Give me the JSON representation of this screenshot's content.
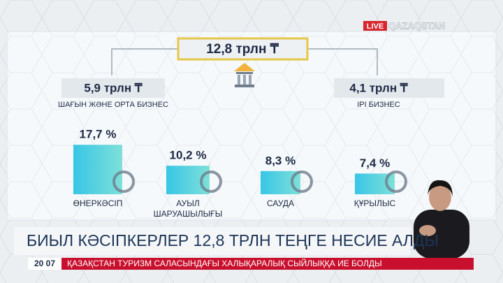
{
  "channel": {
    "live": "LIVE",
    "name": "QAZAQSTAN"
  },
  "infographic": {
    "total": "12,8 трлн ₸",
    "segments": [
      {
        "amount": "5,9 трлн ₸",
        "label": "ШАҒЫН ЖӘНЕ ОРТА БИЗНЕС"
      },
      {
        "amount": "4,1 трлн ₸",
        "label": "ІРІ БИЗНЕС"
      }
    ],
    "sectors": [
      {
        "label": "ӨНЕРКӘСІП",
        "value": 17.7,
        "value_label": "17,7 %"
      },
      {
        "label": "АУЫЛ ШАРУАШЫЛЫҒЫ",
        "value": 10.2,
        "value_label": "10,2 %"
      },
      {
        "label": "САУДА",
        "value": 8.3,
        "value_label": "8,3 %"
      },
      {
        "label": "ҚҰРЫЛЫС",
        "value": 7.4,
        "value_label": "7,4 %"
      }
    ]
  },
  "headline": "БИЫЛ КӘСІПКЕРЛЕР 12,8 ТРЛН ТЕҢГЕ НЕСИЕ АЛДЫ",
  "ticker": {
    "time": "20 07",
    "text": "ҚАЗАҚСТАН ТУРИЗМ САЛАСЫНДАҒЫ ХАЛЫҚАРАЛЫҚ СЫЙЛЫҚҚА ИЕ БОЛДЫ"
  }
}
